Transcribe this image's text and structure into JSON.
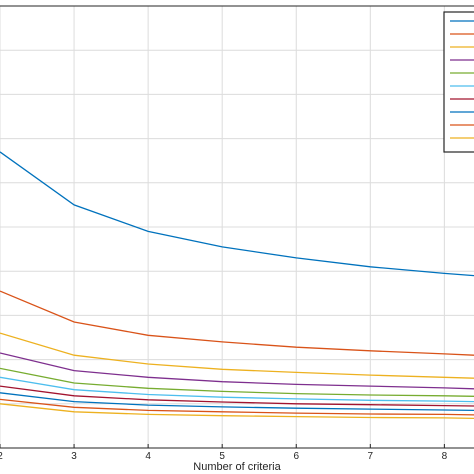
{
  "chart_data": {
    "type": "line",
    "xlabel": "Number of criteria",
    "ylabel": "",
    "title": "",
    "xlim": [
      2,
      8.4
    ],
    "ylim": [
      0,
      1
    ],
    "x": [
      2,
      3,
      4,
      5,
      6,
      7,
      8,
      8.4
    ],
    "x_ticks": [
      "2",
      "3",
      "4",
      "5",
      "6",
      "7",
      "8"
    ],
    "grid": true,
    "legend": "top-right",
    "legend_entries": 10,
    "series": [
      {
        "color": "#0072BD",
        "values": [
          0.67,
          0.55,
          0.49,
          0.455,
          0.43,
          0.41,
          0.395,
          0.39
        ]
      },
      {
        "color": "#D95319",
        "values": [
          0.355,
          0.285,
          0.255,
          0.24,
          0.228,
          0.22,
          0.213,
          0.21
        ]
      },
      {
        "color": "#EDB120",
        "values": [
          0.26,
          0.21,
          0.19,
          0.178,
          0.171,
          0.165,
          0.16,
          0.158
        ]
      },
      {
        "color": "#7E2F8E",
        "values": [
          0.215,
          0.175,
          0.16,
          0.15,
          0.144,
          0.14,
          0.136,
          0.134
        ]
      },
      {
        "color": "#77AC30",
        "values": [
          0.18,
          0.147,
          0.135,
          0.128,
          0.123,
          0.12,
          0.118,
          0.117
        ]
      },
      {
        "color": "#4DBEEE",
        "values": [
          0.16,
          0.132,
          0.121,
          0.115,
          0.111,
          0.108,
          0.106,
          0.105
        ]
      },
      {
        "color": "#A2142F",
        "values": [
          0.14,
          0.118,
          0.109,
          0.104,
          0.1,
          0.098,
          0.096,
          0.095
        ]
      },
      {
        "color": "#0072BD",
        "values": [
          0.125,
          0.105,
          0.097,
          0.093,
          0.09,
          0.088,
          0.086,
          0.085
        ]
      },
      {
        "color": "#D95319",
        "values": [
          0.11,
          0.092,
          0.085,
          0.082,
          0.079,
          0.077,
          0.076,
          0.075
        ]
      },
      {
        "color": "#EDB120",
        "values": [
          0.1,
          0.082,
          0.076,
          0.073,
          0.071,
          0.069,
          0.068,
          0.067
        ]
      }
    ]
  }
}
